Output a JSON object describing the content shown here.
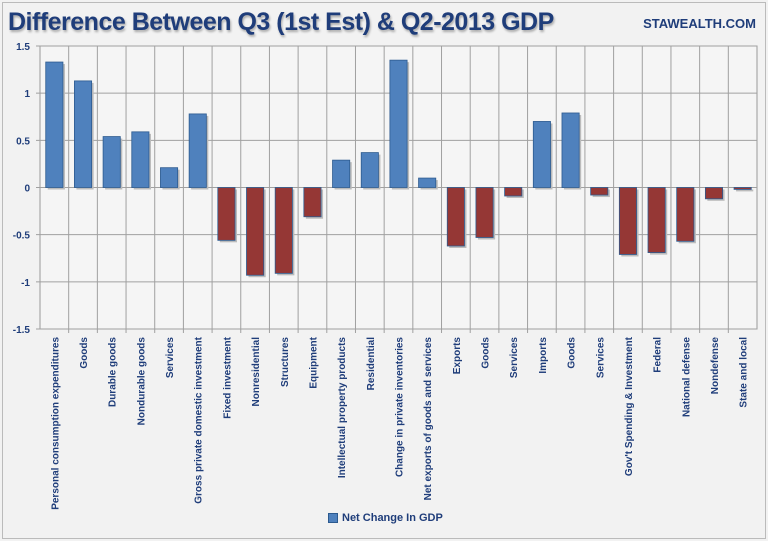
{
  "chart_data": {
    "type": "bar",
    "title": "Difference Between Q3 (1st Est) & Q2-2013 GDP",
    "source": "STAWEALTH.COM",
    "xlabel": "",
    "ylabel": "",
    "ylim": [
      -1.5,
      1.5
    ],
    "yticks": [
      "1.5",
      "1",
      "0.5",
      "0",
      "-0.5",
      "-1",
      "-1.5"
    ],
    "grid": true,
    "legend": {
      "label": "Net Change In GDP",
      "placement": "bottom"
    },
    "colors": {
      "positive": "#4f81bd",
      "negative": "#953735"
    },
    "categories": [
      "Personal consumption expenditures",
      "Goods",
      "Durable goods",
      "Nondurable goods",
      "Services",
      "Gross private domestic investment",
      "Fixed investment",
      "Nonresidential",
      "Structures",
      "Equipment",
      "Intellectual property products",
      "Residential",
      "Change in private inventories",
      "Net exports of goods and services",
      "Exports",
      "Goods",
      "Services",
      "Imports",
      "Goods",
      "Services",
      "Gov't Spending & Investment",
      "Federal",
      "National defense",
      "Nondefense",
      "State and local"
    ],
    "values": [
      1.33,
      1.13,
      0.54,
      0.59,
      0.21,
      0.78,
      -0.56,
      -0.93,
      -0.91,
      -0.31,
      0.29,
      0.37,
      1.35,
      0.1,
      -0.62,
      -0.53,
      -0.09,
      0.7,
      0.79,
      -0.08,
      -0.71,
      -0.69,
      -0.57,
      -0.12,
      -0.02
    ]
  }
}
